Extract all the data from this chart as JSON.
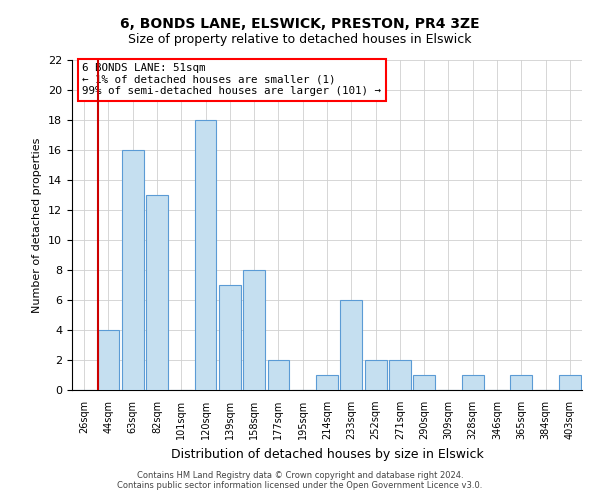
{
  "title_line1": "6, BONDS LANE, ELSWICK, PRESTON, PR4 3ZE",
  "title_line2": "Size of property relative to detached houses in Elswick",
  "xlabel": "Distribution of detached houses by size in Elswick",
  "ylabel": "Number of detached properties",
  "bar_labels": [
    "26sqm",
    "44sqm",
    "63sqm",
    "82sqm",
    "101sqm",
    "120sqm",
    "139sqm",
    "158sqm",
    "177sqm",
    "195sqm",
    "214sqm",
    "233sqm",
    "252sqm",
    "271sqm",
    "290sqm",
    "309sqm",
    "328sqm",
    "346sqm",
    "365sqm",
    "384sqm",
    "403sqm"
  ],
  "bar_values": [
    0,
    4,
    16,
    13,
    0,
    18,
    7,
    8,
    2,
    0,
    1,
    6,
    2,
    2,
    1,
    0,
    1,
    0,
    1,
    0,
    1
  ],
  "bar_color": "#c5dff0",
  "bar_edge_color": "#5b9bd5",
  "annotation_line1": "6 BONDS LANE: 51sqm",
  "annotation_line2": "← 1% of detached houses are smaller (1)",
  "annotation_line3": "99% of semi-detached houses are larger (101) →",
  "ylim": [
    0,
    22
  ],
  "yticks": [
    0,
    2,
    4,
    6,
    8,
    10,
    12,
    14,
    16,
    18,
    20,
    22
  ],
  "red_line_color": "#cc0000",
  "grid_color": "#d0d0d0",
  "footnote1": "Contains HM Land Registry data © Crown copyright and database right 2024.",
  "footnote2": "Contains public sector information licensed under the Open Government Licence v3.0."
}
